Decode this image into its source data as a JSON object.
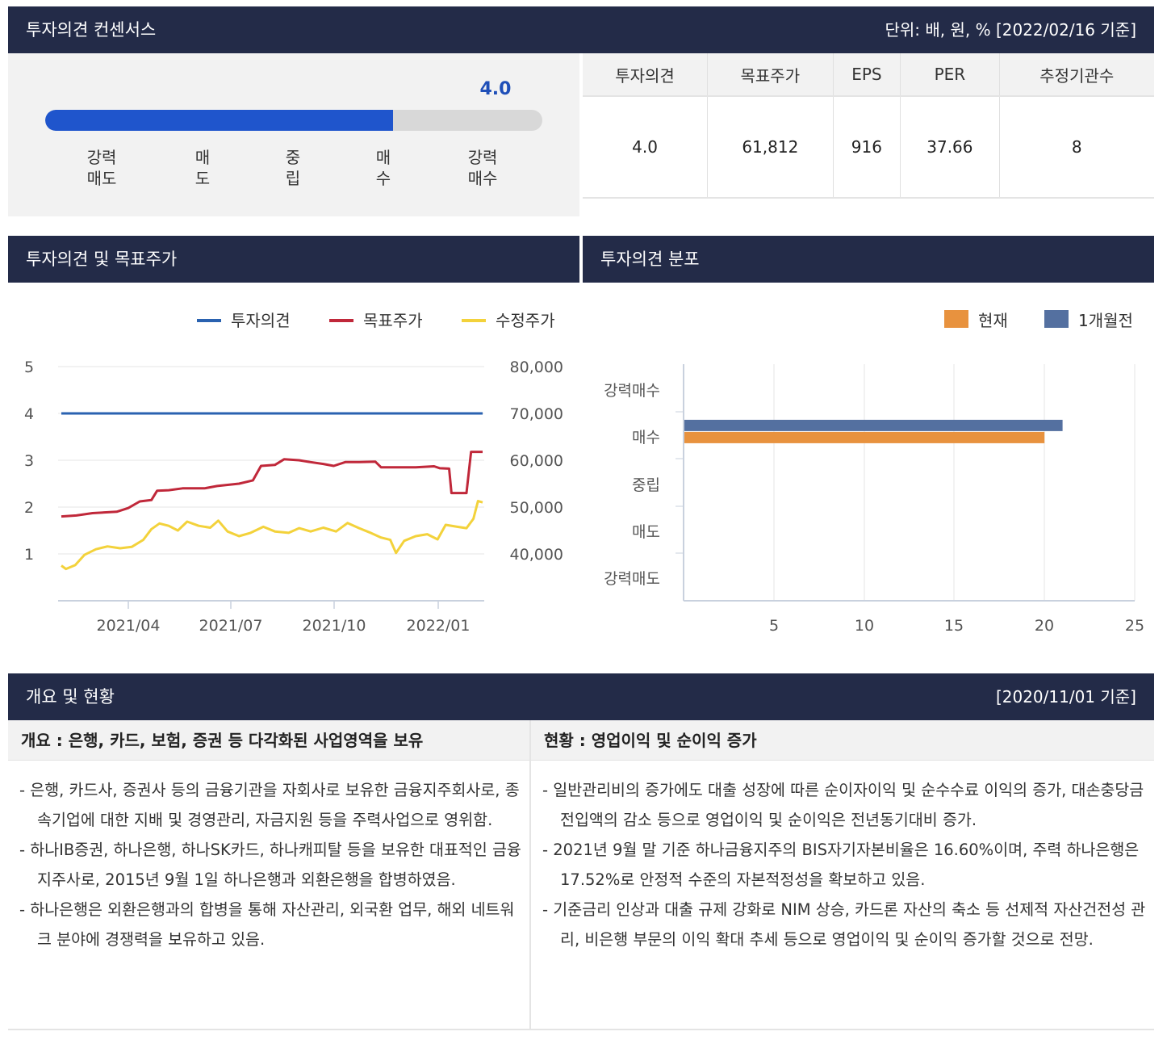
{
  "consensus": {
    "title": "투자의견 컨센서스",
    "unit_note": "단위: 배, 원, % [2022/02/16 기준]",
    "gauge": {
      "value_label": "4.0",
      "value": 4.0,
      "min": 0.5,
      "max": 5.5,
      "labels": [
        {
          "l1": "강력",
          "l2": "매도"
        },
        {
          "l1": "매",
          "l2": "도"
        },
        {
          "l1": "중",
          "l2": "립"
        },
        {
          "l1": "매",
          "l2": "수"
        },
        {
          "l1": "강력",
          "l2": "매수"
        }
      ]
    },
    "table": {
      "headers": [
        "투자의견",
        "목표주가",
        "EPS",
        "PER",
        "추정기관수"
      ],
      "values": [
        "4.0",
        "61,812",
        "916",
        "37.66",
        "8"
      ]
    }
  },
  "opinion_price": {
    "title": "투자의견 및 목표주가",
    "legend": [
      {
        "name": "투자의견",
        "color": "#2a62b0"
      },
      {
        "name": "목표주가",
        "color": "#c0283a"
      },
      {
        "name": "수정주가",
        "color": "#f3d23b"
      }
    ],
    "left_ticks": [
      "5",
      "4",
      "3",
      "2",
      "1"
    ],
    "right_ticks": [
      "80,000",
      "70,000",
      "60,000",
      "50,000",
      "40,000"
    ],
    "x_ticks": [
      "2021/04",
      "2021/07",
      "2021/10",
      "2022/01"
    ]
  },
  "distribution": {
    "title": "투자의견 분포",
    "legend": [
      {
        "name": "현재",
        "color": "#e8923e"
      },
      {
        "name": "1개월전",
        "color": "#5470a0"
      }
    ],
    "categories": [
      "강력매수",
      "매수",
      "중립",
      "매도",
      "강력매도"
    ],
    "x_ticks": [
      "5",
      "10",
      "15",
      "20",
      "25"
    ]
  },
  "chart_data": [
    {
      "type": "line",
      "x_range": [
        "2021-02-16",
        "2022-02-16"
      ],
      "ylim_left": [
        0,
        5
      ],
      "ylim_right": [
        30000,
        80000
      ],
      "series": [
        {
          "name": "투자의견",
          "axis": "left",
          "points": [
            [
              "2021-02-16",
              4.0
            ],
            [
              "2022-02-16",
              4.0
            ]
          ]
        },
        {
          "name": "목표주가",
          "axis": "right",
          "points": [
            [
              "2021-02-16",
              48000
            ],
            [
              "2021-03-01",
              48200
            ],
            [
              "2021-03-15",
              48700
            ],
            [
              "2021-04-05",
              49000
            ],
            [
              "2021-04-15",
              49800
            ],
            [
              "2021-04-25",
              51200
            ],
            [
              "2021-05-05",
              51500
            ],
            [
              "2021-05-10",
              53500
            ],
            [
              "2021-05-20",
              53600
            ],
            [
              "2021-06-01",
              54000
            ],
            [
              "2021-06-20",
              54000
            ],
            [
              "2021-07-01",
              54500
            ],
            [
              "2021-07-20",
              55000
            ],
            [
              "2021-08-01",
              55700
            ],
            [
              "2021-08-08",
              58800
            ],
            [
              "2021-08-20",
              59000
            ],
            [
              "2021-08-28",
              60200
            ],
            [
              "2021-09-10",
              60000
            ],
            [
              "2021-09-20",
              59600
            ],
            [
              "2021-10-01",
              59200
            ],
            [
              "2021-10-10",
              58800
            ],
            [
              "2021-10-20",
              59600
            ],
            [
              "2021-11-01",
              59600
            ],
            [
              "2021-11-15",
              59700
            ],
            [
              "2021-11-20",
              58500
            ],
            [
              "2021-12-10",
              58500
            ],
            [
              "2021-12-20",
              58500
            ],
            [
              "2022-01-05",
              58700
            ],
            [
              "2022-01-10",
              58300
            ],
            [
              "2022-01-18",
              58200
            ],
            [
              "2022-01-20",
              53000
            ],
            [
              "2022-02-02",
              53000
            ],
            [
              "2022-02-06",
              61800
            ],
            [
              "2022-02-16",
              61800
            ]
          ]
        },
        {
          "name": "수정주가",
          "axis": "right",
          "points": [
            [
              "2021-02-16",
              37500
            ],
            [
              "2021-02-20",
              36800
            ],
            [
              "2021-02-28",
              37600
            ],
            [
              "2021-03-08",
              39800
            ],
            [
              "2021-03-18",
              41000
            ],
            [
              "2021-03-28",
              41600
            ],
            [
              "2021-04-08",
              41200
            ],
            [
              "2021-04-18",
              41500
            ],
            [
              "2021-04-28",
              43000
            ],
            [
              "2021-05-05",
              45300
            ],
            [
              "2021-05-12",
              46500
            ],
            [
              "2021-05-20",
              46000
            ],
            [
              "2021-05-28",
              45000
            ],
            [
              "2021-06-05",
              46900
            ],
            [
              "2021-06-15",
              46000
            ],
            [
              "2021-06-25",
              45600
            ],
            [
              "2021-07-02",
              47100
            ],
            [
              "2021-07-10",
              44800
            ],
            [
              "2021-07-20",
              43800
            ],
            [
              "2021-07-30",
              44500
            ],
            [
              "2021-08-10",
              45800
            ],
            [
              "2021-08-20",
              44800
            ],
            [
              "2021-09-01",
              44500
            ],
            [
              "2021-09-10",
              45500
            ],
            [
              "2021-09-20",
              44800
            ],
            [
              "2021-10-01",
              45600
            ],
            [
              "2021-10-12",
              44800
            ],
            [
              "2021-10-22",
              46600
            ],
            [
              "2021-11-01",
              45500
            ],
            [
              "2021-11-10",
              44600
            ],
            [
              "2021-11-20",
              43500
            ],
            [
              "2021-11-28",
              43000
            ],
            [
              "2021-12-03",
              40200
            ],
            [
              "2021-12-10",
              42800
            ],
            [
              "2021-12-20",
              43800
            ],
            [
              "2021-12-30",
              44200
            ],
            [
              "2022-01-08",
              43100
            ],
            [
              "2022-01-15",
              46200
            ],
            [
              "2022-01-25",
              45800
            ],
            [
              "2022-02-02",
              45500
            ],
            [
              "2022-02-08",
              47500
            ],
            [
              "2022-02-12",
              51300
            ],
            [
              "2022-02-16",
              51000
            ]
          ]
        }
      ]
    },
    {
      "type": "bar",
      "orientation": "horizontal",
      "categories": [
        "강력매수",
        "매수",
        "중립",
        "매도",
        "강력매도"
      ],
      "xlim": [
        0,
        25
      ],
      "series": [
        {
          "name": "현재",
          "values": [
            0,
            20,
            0,
            0,
            0
          ]
        },
        {
          "name": "1개월전",
          "values": [
            0,
            21,
            0,
            0,
            0
          ]
        }
      ]
    }
  ],
  "overview": {
    "title": "개요 및 현황",
    "date_note": "[2020/11/01 기준]",
    "left": {
      "heading": "개요 : 은행, 카드, 보험, 증권 등 다각화된 사업영역을 보유",
      "items": [
        "은행, 카드사, 증권사 등의 금융기관을 자회사로 보유한 금융지주회사로, 종속기업에 대한 지배 및 경영관리, 자금지원 등을 주력사업으로 영위함.",
        "하나IB증권, 하나은행, 하나SK카드, 하나캐피탈 등을 보유한 대표적인 금융지주사로, 2015년 9월 1일 하나은행과 외환은행을 합병하였음.",
        "하나은행은 외환은행과의 합병을 통해 자산관리, 외국환 업무, 해외 네트워크 분야에 경쟁력을 보유하고 있음."
      ]
    },
    "right": {
      "heading": "현황 : 영업이익 및 순이익 증가",
      "items": [
        "일반관리비의 증가에도 대출 성장에 따른 순이자이익 및 순수수료 이익의 증가, 대손충당금 전입액의 감소 등으로 영업이익 및 순이익은 전년동기대비 증가.",
        "2021년 9월 말 기준 하나금융지주의 BIS자기자본비율은 16.60%이며, 주력 하나은행은 17.52%로 안정적 수준의 자본적정성을 확보하고 있음.",
        "기준금리 인상과 대출 규제 강화로 NIM 상승, 카드론 자산의 축소 등 선제적 자산건전성 관리, 비은행 부문의 이익 확대 추세 등으로 영업이익 및 순이익 증가할 것으로 전망."
      ]
    }
  }
}
